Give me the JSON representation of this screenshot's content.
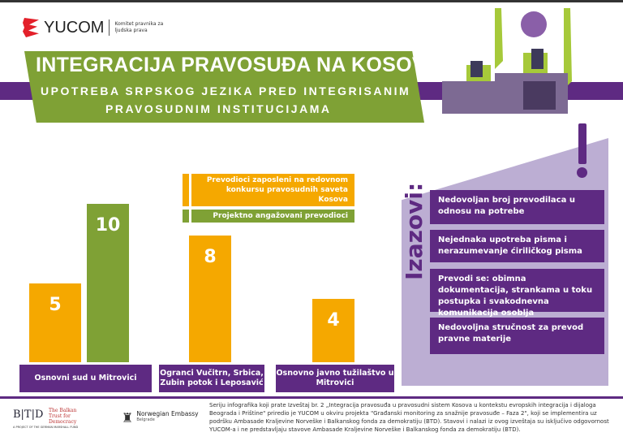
{
  "header": {
    "logo_name": "YUCOM",
    "logo_sub": "Komitet pravnika za ljudska prava",
    "title": "INTEGRACIJA PRAVOSUĐA NA KOSOVU",
    "subtitle_1": "UPOTREBA SRPSKOG JEZIKA PRED INTEGRISANIM",
    "subtitle_2": "PRAVOSUDNIM INSTITUCIJAMA"
  },
  "colors": {
    "purple": "#5e2a82",
    "green": "#7fa135",
    "orange": "#f5a800",
    "lavender": "#bcaed3"
  },
  "chart_data": {
    "type": "bar",
    "categories": [
      "Osnovni sud u Mitrovici",
      "Ograncі Vučitrn, Srbica, Zubin potok i Leposavić",
      "Osnovno javno tužilaštvo u Mitrovici"
    ],
    "series": [
      {
        "name": "Prevodioci zaposleni na redovnom konkursu pravosudnih saveta Kosova",
        "values": [
          5,
          8,
          4
        ]
      },
      {
        "name": "Projektno angažovani prevodioci",
        "values": [
          10,
          null,
          null
        ]
      }
    ],
    "legend": "top"
  },
  "challenges": {
    "heading": "Izazovi:",
    "items": [
      "Nedovoljan broj prevodilaca u odnosu na potrebe",
      "Nejednaka upotreba pisma i nerazumevanje ćiriličkog pisma",
      "Prevodi se: obimna dokumentacija, strankama u toku postupka i svakodnevna komunikacija osoblja",
      "Nedovoljna stručnost za prevod pravne materije"
    ]
  },
  "footer": {
    "btd": "B|T|D",
    "btd_name": "The Balkan Trust for Democracy",
    "btd_project": "A PROJECT OF THE GERMAN MARSHALL FUND",
    "norway": "Norwegian Embassy",
    "norway_city": "Belgrade",
    "text": "Seriju infografika koji prate Izveštaj br. 2 „Integracija pravosuđa u pravosudni sistem Kosova u kontekstu evropskih integracija i dijaloga Beograda i Prištine\" priredio je YUCOM u okviru projekta \"Građanski monitoring za snažnije pravosuđe – Faza 2\", koji se implementira uz podršku Ambasade Kraljevine Norveške i Balkanskog fonda za demokratiju (BTD). Stavovi i nalazi iz ovog izveštaja su isključivo odgovornost YUCOM-a i ne predstavljaju stavove Ambasade Kraljevine Norveške i Balkanskog fonda za demokratiju (BTD)."
  }
}
